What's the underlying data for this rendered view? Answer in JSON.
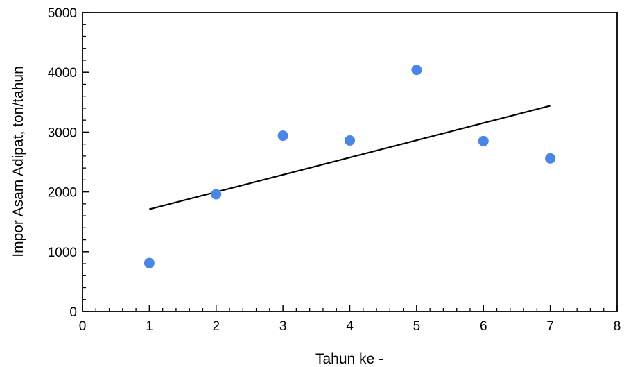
{
  "chart_data": {
    "type": "scatter",
    "xlabel": "Tahun ke -",
    "ylabel": "Impor Asam Adipat, ton/tahun",
    "xlim": [
      0,
      8
    ],
    "ylim": [
      0,
      5000
    ],
    "x_ticks": [
      0,
      1,
      2,
      3,
      4,
      5,
      6,
      7,
      8
    ],
    "y_ticks": [
      0,
      1000,
      2000,
      3000,
      4000,
      5000
    ],
    "x_tick_labels": [
      "0",
      "1",
      "2",
      "3",
      "4",
      "5",
      "6",
      "7",
      "8"
    ],
    "y_tick_labels": [
      "0",
      "1000",
      "2000",
      "3000",
      "4000",
      "5000"
    ],
    "grid": false,
    "series": [
      {
        "kind": "points",
        "x": [
          1,
          2,
          3,
          4,
          5,
          6,
          7
        ],
        "y": [
          810,
          1960,
          2940,
          2860,
          4040,
          2850,
          2560
        ],
        "color": "#4a86e8"
      },
      {
        "kind": "trendline",
        "x": [
          1,
          7
        ],
        "y": [
          1710,
          3440
        ],
        "color": "#000000"
      }
    ]
  }
}
